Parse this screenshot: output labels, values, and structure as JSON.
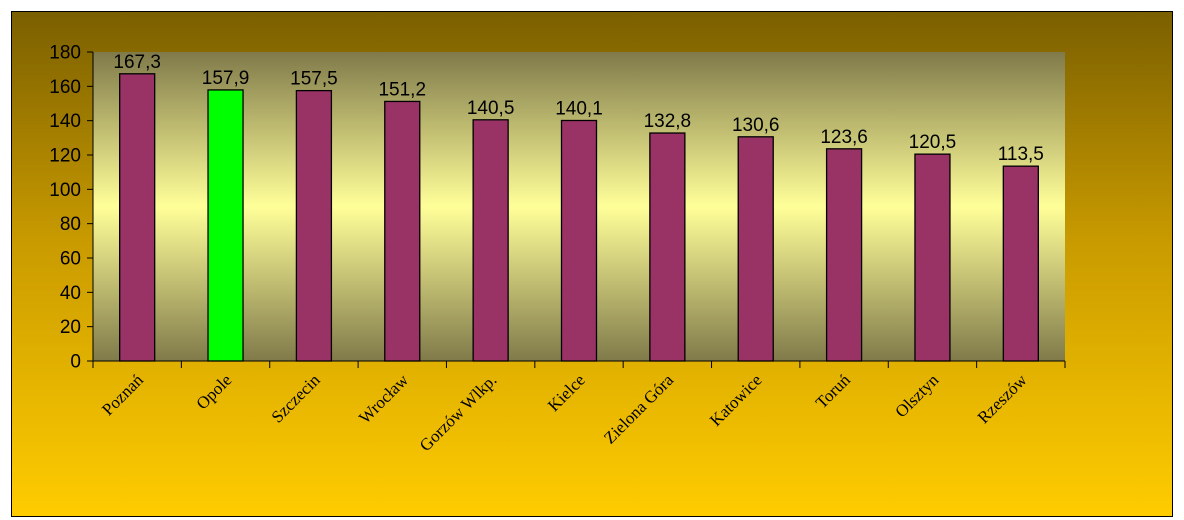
{
  "colors": {
    "bar": "#993366",
    "highlight_bar": "#00ff00",
    "outer_background_top": "#7a5f00",
    "outer_background_bottom": "#ffcc00",
    "plot_background_center": "#ffff99",
    "plot_background_edge": "#807a4a"
  },
  "chart_data": {
    "type": "bar",
    "title": "",
    "xlabel": "",
    "ylabel": "",
    "categories": [
      "Poznań",
      "Opole",
      "Szczecin",
      "Wrocław",
      "Gorzów Wlkp.",
      "Kielce",
      "Zielona Góra",
      "Katowice",
      "Toruń",
      "Olsztyn",
      "Rzeszów"
    ],
    "values": [
      167.3,
      157.9,
      157.5,
      151.2,
      140.5,
      140.1,
      132.8,
      130.6,
      123.6,
      120.5,
      113.5
    ],
    "data_labels": [
      "167,3",
      "157,9",
      "157,5",
      "151,2",
      "140,5",
      "140,1",
      "132,8",
      "130,6",
      "123,6",
      "120,5",
      "113,5"
    ],
    "highlight_category": "Opole",
    "ylim": [
      0,
      180
    ],
    "y_ticks": [
      0,
      20,
      40,
      60,
      80,
      100,
      120,
      140,
      160,
      180
    ],
    "y_tick_labels": [
      "0",
      "20",
      "40",
      "60",
      "80",
      "100",
      "120",
      "140",
      "160",
      "180"
    ],
    "grid": false,
    "legend": "none"
  }
}
